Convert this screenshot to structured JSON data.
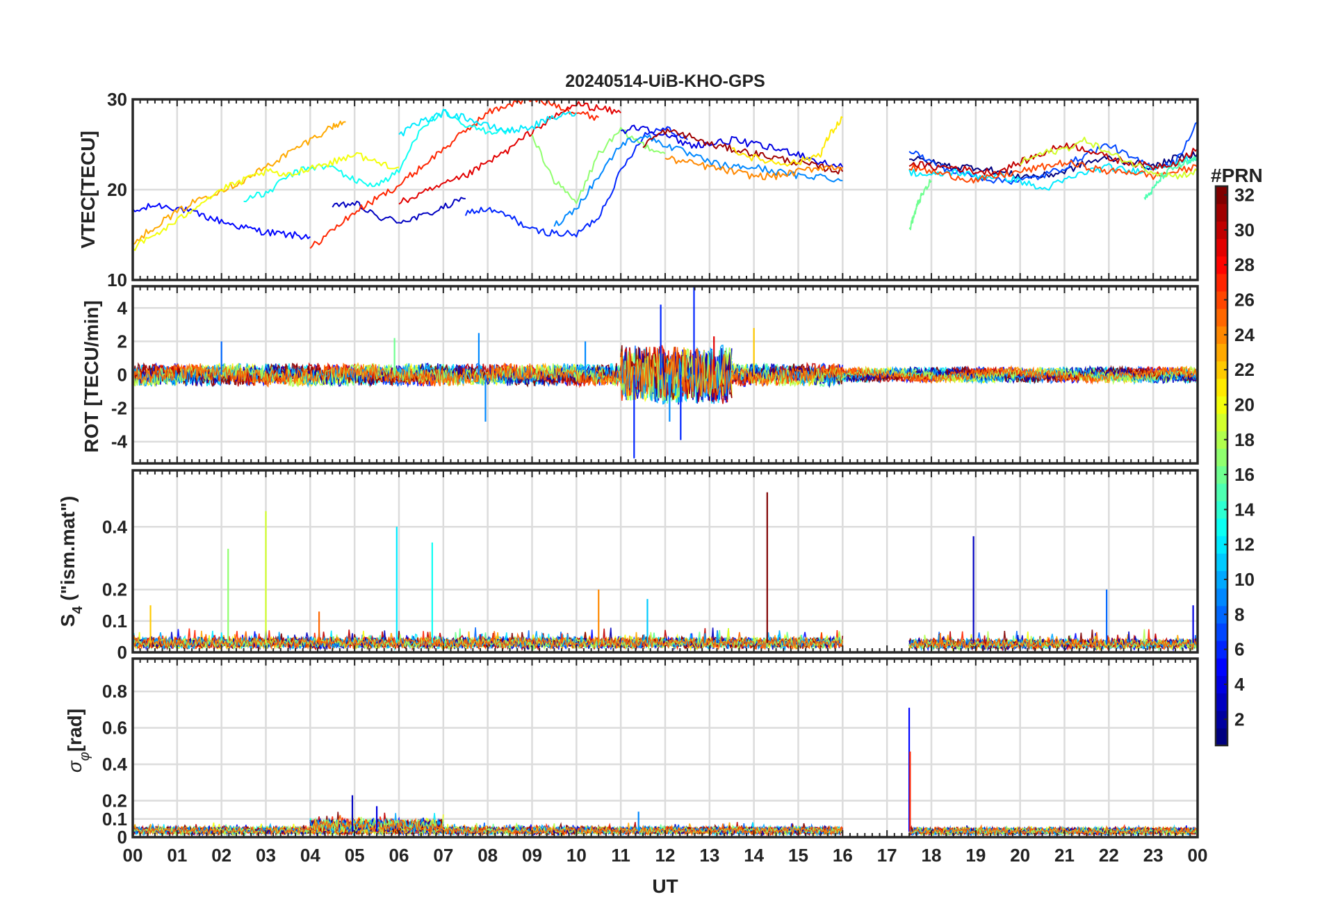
{
  "chart_data": [
    {
      "id": "vtec",
      "type": "line",
      "title": "20240514-UiB-KHO-GPS",
      "ylabel": "VTEC[TECU]",
      "ylim": [
        10,
        30
      ],
      "yticks": [
        10,
        20,
        30
      ],
      "ytick_labels": [
        "10",
        "20",
        "30"
      ],
      "grid": true,
      "series": [
        {
          "name": "PRN 5",
          "prn": 5,
          "x": [
            0.0,
            0.5,
            1.0,
            1.5,
            2.0,
            2.5,
            3.0,
            3.5,
            4.0
          ],
          "values": [
            17.5,
            18.3,
            18.0,
            17.2,
            16.5,
            15.8,
            15.3,
            15.0,
            14.8
          ]
        },
        {
          "name": "PRN 3",
          "prn": 3,
          "x": [
            4.5,
            5.0,
            5.5,
            6.0,
            6.5,
            7.0,
            7.5
          ],
          "values": [
            18.0,
            18.5,
            17.0,
            16.5,
            17.0,
            18.0,
            19.0
          ]
        },
        {
          "name": "PRN 6",
          "prn": 6,
          "x": [
            7.5,
            8.0,
            8.5,
            9.0,
            9.5,
            10.0,
            10.5,
            11.0,
            11.5,
            12.0,
            12.5
          ],
          "values": [
            17.5,
            17.8,
            17.0,
            15.5,
            15.2,
            15.0,
            17.0,
            22.0,
            26.0,
            27.0,
            25.5
          ]
        },
        {
          "name": "PRN 27",
          "prn": 27,
          "x": [
            4.0,
            4.5,
            5.0,
            5.5,
            6.0,
            6.5,
            7.0,
            7.5,
            8.0,
            8.5,
            9.0,
            9.5,
            10.0,
            10.5
          ],
          "values": [
            13.5,
            15.5,
            17.5,
            19.0,
            20.5,
            22.5,
            24.5,
            26.5,
            28.5,
            29.5,
            30.0,
            29.5,
            28.5,
            28.0
          ]
        },
        {
          "name": "PRN 23",
          "prn": 23,
          "x": [
            0.0,
            0.5,
            1.0,
            1.5,
            2.0,
            2.5,
            3.0,
            3.5,
            4.0,
            4.5,
            4.8
          ],
          "values": [
            14.0,
            16.0,
            17.5,
            19.0,
            20.0,
            21.0,
            22.5,
            24.0,
            25.5,
            27.0,
            27.5
          ]
        },
        {
          "name": "PRN 13",
          "prn": 13,
          "x": [
            2.5,
            3.0,
            3.5,
            4.0,
            4.5,
            5.0,
            5.5,
            6.0,
            6.5,
            7.0,
            7.5,
            8.0,
            8.5
          ],
          "values": [
            19.0,
            19.5,
            21.5,
            22.5,
            22.5,
            21.0,
            20.5,
            22.0,
            27.0,
            28.5,
            27.0,
            26.5,
            26.5
          ]
        },
        {
          "name": "PRN 29",
          "prn": 29,
          "x": [
            6.0,
            6.5,
            7.0,
            7.5,
            8.0,
            8.5,
            9.0,
            9.5,
            10.0,
            10.5,
            11.0
          ],
          "values": [
            18.5,
            19.5,
            20.5,
            21.5,
            23.0,
            24.5,
            26.5,
            28.0,
            29.5,
            29.0,
            28.5
          ]
        },
        {
          "name": "PRN 17",
          "prn": 17,
          "x": [
            9.0,
            9.5,
            10.0,
            10.5,
            11.0,
            11.5,
            12.0
          ],
          "values": [
            26.0,
            21.0,
            18.5,
            24.0,
            26.5,
            25.0,
            24.0
          ]
        },
        {
          "name": "PRN 20",
          "prn": 20,
          "x": [
            0.0,
            0.5,
            1.0,
            1.5,
            2.0,
            2.5,
            3.0,
            3.5,
            4.0,
            4.5,
            5.0,
            5.5,
            6.0
          ],
          "values": [
            13.5,
            15.0,
            16.5,
            18.5,
            20.0,
            21.0,
            22.0,
            21.5,
            22.5,
            23.0,
            24.0,
            23.0,
            22.5
          ]
        },
        {
          "name": "PRN 12",
          "prn": 12,
          "x": [
            6.0,
            6.5,
            7.0,
            7.5,
            8.0,
            8.5,
            9.0,
            9.5,
            10.0
          ],
          "values": [
            26.0,
            27.5,
            28.5,
            28.0,
            27.0,
            26.5,
            27.0,
            28.0,
            28.5
          ]
        },
        {
          "name": "PRN 9",
          "prn": 9,
          "x": [
            9.5,
            10.0,
            10.5,
            11.0,
            11.5,
            12.0,
            12.5,
            13.0,
            13.5,
            14.0,
            14.5,
            15.0,
            15.5,
            16.0
          ],
          "values": [
            16.0,
            18.0,
            21.5,
            25.0,
            26.0,
            25.0,
            24.0,
            23.0,
            22.5,
            22.5,
            22.0,
            21.5,
            21.5,
            21.0
          ]
        },
        {
          "name": "PRN 4",
          "prn": 4,
          "x": [
            11.0,
            11.5,
            12.0,
            12.5,
            13.0,
            13.5,
            14.0,
            14.5,
            15.0,
            15.5,
            16.0
          ],
          "values": [
            26.5,
            27.0,
            26.0,
            25.0,
            25.0,
            25.5,
            25.0,
            24.5,
            24.0,
            23.0,
            22.5
          ]
        },
        {
          "name": "PRN 31",
          "prn": 31,
          "x": [
            11.5,
            12.0,
            12.5,
            13.0,
            13.5,
            14.0,
            14.5,
            15.0,
            15.5,
            16.0
          ],
          "values": [
            25.0,
            26.5,
            26.0,
            25.0,
            24.5,
            24.0,
            23.5,
            23.0,
            22.5,
            22.0
          ]
        },
        {
          "name": "PRN 21",
          "prn": 21,
          "x": [
            13.5,
            14.0,
            14.5,
            15.0,
            15.5,
            15.7,
            16.0
          ],
          "values": [
            24.5,
            23.5,
            23.0,
            23.0,
            24.0,
            26.0,
            28.0
          ]
        },
        {
          "name": "PRN 24",
          "prn": 24,
          "x": [
            12.0,
            12.5,
            13.0,
            13.5,
            14.0,
            14.5,
            15.0,
            15.5,
            16.0
          ],
          "values": [
            23.5,
            23.0,
            22.5,
            22.0,
            21.5,
            21.5,
            22.0,
            22.5,
            22.5
          ]
        },
        {
          "name": "PRN 1",
          "prn": 1,
          "x": [
            17.5,
            18.0,
            18.5,
            19.0,
            19.5,
            20.0,
            20.5,
            21.0,
            21.5,
            22.0,
            22.5,
            23.0,
            23.5,
            24.0
          ],
          "values": [
            23.5,
            23.0,
            22.5,
            22.5,
            22.0,
            21.5,
            21.5,
            22.0,
            23.0,
            23.5,
            23.0,
            22.5,
            23.5,
            24.0
          ]
        },
        {
          "name": "PRN 7",
          "prn": 7,
          "x": [
            17.5,
            18.0,
            18.5,
            19.0,
            19.5,
            20.0,
            20.5,
            21.0,
            21.5,
            22.0,
            22.5,
            23.0,
            23.5,
            24.0
          ],
          "values": [
            24.5,
            23.0,
            22.0,
            21.5,
            21.0,
            21.0,
            21.5,
            22.5,
            24.0,
            25.0,
            23.5,
            22.5,
            23.0,
            27.5
          ]
        },
        {
          "name": "PRN 12b",
          "prn": 12,
          "x": [
            17.5,
            18.0,
            18.5,
            19.0,
            19.5,
            20.0,
            20.5,
            21.0,
            21.5,
            22.0,
            22.5,
            23.0,
            23.5,
            24.0
          ],
          "values": [
            22.0,
            21.5,
            22.0,
            21.5,
            21.5,
            21.0,
            20.0,
            21.0,
            22.0,
            22.5,
            22.0,
            22.5,
            23.0,
            23.5
          ]
        },
        {
          "name": "PRN 26",
          "prn": 26,
          "x": [
            17.5,
            18.0,
            18.5,
            19.0,
            19.5,
            20.0,
            20.5,
            21.0,
            21.5,
            22.0,
            22.5,
            23.0,
            23.5,
            24.0
          ],
          "values": [
            22.5,
            22.0,
            21.5,
            21.0,
            21.5,
            22.0,
            22.5,
            23.0,
            22.5,
            22.0,
            22.0,
            21.5,
            22.0,
            22.5
          ]
        },
        {
          "name": "PRN 30",
          "prn": 30,
          "x": [
            17.5,
            18.0,
            18.5,
            19.0,
            19.5,
            20.0,
            20.5,
            21.0,
            21.5,
            22.0,
            22.5,
            23.0,
            23.5,
            24.0
          ],
          "values": [
            23.0,
            22.5,
            22.5,
            22.0,
            22.0,
            23.0,
            24.0,
            25.0,
            24.5,
            23.5,
            23.0,
            22.5,
            23.0,
            24.5
          ]
        },
        {
          "name": "PRN 16",
          "prn": 16,
          "x": [
            17.5,
            17.6,
            17.7,
            17.8,
            18.0
          ],
          "values": [
            15.5,
            17.0,
            18.5,
            19.5,
            21.0
          ]
        },
        {
          "name": "PRN 19",
          "prn": 19,
          "x": [
            20.0,
            20.5,
            21.0,
            21.5,
            22.0,
            22.5,
            23.0,
            23.5,
            24.0
          ],
          "values": [
            23.0,
            24.0,
            24.5,
            25.5,
            24.0,
            23.0,
            22.0,
            21.5,
            22.0
          ]
        },
        {
          "name": "PRN 15",
          "prn": 15,
          "x": [
            22.8,
            23.0,
            23.2,
            23.5,
            23.8,
            24.0
          ],
          "values": [
            19.0,
            20.0,
            21.5,
            22.5,
            23.0,
            23.5
          ]
        }
      ]
    },
    {
      "id": "rot",
      "type": "line",
      "ylabel": "ROT [TECU/min]",
      "ylim": [
        -5.3,
        5.3
      ],
      "yticks": [
        -4,
        -2,
        0,
        2,
        4
      ],
      "ytick_labels": [
        "-4",
        "-2",
        "0",
        "2",
        "4"
      ],
      "grid": true,
      "noise_segments": [
        {
          "x_range": [
            0.0,
            16.0
          ],
          "amplitude": 0.5
        },
        {
          "x_range": [
            11.0,
            13.5
          ],
          "amplitude": 1.6
        },
        {
          "x_range": [
            16.0,
            17.5
          ],
          "amplitude": 0.25
        },
        {
          "x_range": [
            17.5,
            24.0
          ],
          "amplitude": 0.3
        }
      ],
      "spikes": [
        {
          "x": 2.0,
          "value": 2.0,
          "prn": 8
        },
        {
          "x": 5.9,
          "value": 2.2,
          "prn": 16
        },
        {
          "x": 7.8,
          "value": 2.5,
          "prn": 9
        },
        {
          "x": 7.95,
          "value": -2.8,
          "prn": 9
        },
        {
          "x": 10.2,
          "value": 2.0,
          "prn": 9
        },
        {
          "x": 11.3,
          "value": -5.0,
          "prn": 6
        },
        {
          "x": 11.9,
          "value": 4.2,
          "prn": 6
        },
        {
          "x": 12.65,
          "value": 5.3,
          "prn": 6
        },
        {
          "x": 12.35,
          "value": -3.9,
          "prn": 6
        },
        {
          "x": 12.1,
          "value": -2.8,
          "prn": 9
        },
        {
          "x": 14.0,
          "value": 2.8,
          "prn": 22
        },
        {
          "x": 13.1,
          "value": 2.3,
          "prn": 29
        }
      ]
    },
    {
      "id": "s4",
      "type": "line",
      "ylabel": "S4 (\"ism.mat\")",
      "ylabel_main": "S",
      "ylabel_sub": "4",
      "ylabel_rest": " (\"ism.mat\")",
      "ylim": [
        0,
        0.58
      ],
      "yticks": [
        0,
        0.1,
        0.2,
        0.4
      ],
      "ytick_labels": [
        "0",
        "0.1",
        "0.2",
        "0.4"
      ],
      "grid": true,
      "noise_segments": [
        {
          "x_range": [
            0.0,
            16.0
          ],
          "base": 0.03,
          "amplitude": 0.03
        },
        {
          "x_range": [
            17.5,
            24.0
          ],
          "base": 0.025,
          "amplitude": 0.03
        }
      ],
      "spikes": [
        {
          "x": 2.15,
          "value": 0.33,
          "prn": 17
        },
        {
          "x": 3.0,
          "value": 0.45,
          "prn": 19
        },
        {
          "x": 5.95,
          "value": 0.4,
          "prn": 12
        },
        {
          "x": 6.75,
          "value": 0.35,
          "prn": 13
        },
        {
          "x": 14.3,
          "value": 0.51,
          "prn": 32
        },
        {
          "x": 18.95,
          "value": 0.37,
          "prn": 3
        },
        {
          "x": 21.95,
          "value": 0.2,
          "prn": 8
        },
        {
          "x": 11.6,
          "value": 0.17,
          "prn": 11
        },
        {
          "x": 10.5,
          "value": 0.2,
          "prn": 24
        },
        {
          "x": 0.4,
          "value": 0.15,
          "prn": 22
        },
        {
          "x": 4.2,
          "value": 0.13,
          "prn": 25
        },
        {
          "x": 23.9,
          "value": 0.15,
          "prn": 4
        }
      ]
    },
    {
      "id": "sigma",
      "type": "line",
      "ylabel": "σφ[rad]",
      "ylabel_main": "σ",
      "ylabel_sub": "φ",
      "ylabel_rest": "[rad]",
      "ylim": [
        0,
        0.98
      ],
      "yticks": [
        0,
        0.1,
        0.2,
        0.4,
        0.6,
        0.8
      ],
      "ytick_labels": [
        "0",
        "0.1",
        "0.2",
        "0.4",
        "0.6",
        "0.8"
      ],
      "grid": true,
      "noise_segments": [
        {
          "x_range": [
            0.0,
            16.0
          ],
          "base": 0.04,
          "amplitude": 0.025
        },
        {
          "x_range": [
            4.0,
            7.0
          ],
          "base": 0.07,
          "amplitude": 0.04
        },
        {
          "x_range": [
            17.5,
            24.0
          ],
          "base": 0.04,
          "amplitude": 0.012
        }
      ],
      "spikes": [
        {
          "x": 4.95,
          "value": 0.23,
          "prn": 3
        },
        {
          "x": 5.5,
          "value": 0.17,
          "prn": 4
        },
        {
          "x": 11.4,
          "value": 0.14,
          "prn": 9
        },
        {
          "x": 17.5,
          "value": 0.71,
          "prn": 5
        },
        {
          "x": 17.52,
          "value": 0.47,
          "prn": 27
        }
      ]
    }
  ],
  "xaxis": {
    "xlabel": "UT",
    "xlim": [
      0,
      24
    ],
    "ticks": [
      0,
      1,
      2,
      3,
      4,
      5,
      6,
      7,
      8,
      9,
      10,
      11,
      12,
      13,
      14,
      15,
      16,
      17,
      18,
      19,
      20,
      21,
      22,
      23,
      24
    ],
    "tick_labels": [
      "00",
      "01",
      "02",
      "03",
      "04",
      "05",
      "06",
      "07",
      "08",
      "09",
      "10",
      "11",
      "12",
      "13",
      "14",
      "15",
      "16",
      "17",
      "18",
      "19",
      "20",
      "21",
      "22",
      "23",
      "00"
    ]
  },
  "colorbar": {
    "title": "#PRN",
    "range": [
      1,
      32
    ],
    "ticks": [
      2,
      4,
      6,
      8,
      10,
      12,
      14,
      16,
      18,
      20,
      22,
      24,
      26,
      28,
      30,
      32
    ],
    "tick_labels": [
      "2",
      "4",
      "6",
      "8",
      "10",
      "12",
      "14",
      "16",
      "18",
      "20",
      "22",
      "24",
      "26",
      "28",
      "30",
      "32"
    ],
    "colormap": "jet"
  },
  "colors": {
    "grid": "#dcdcdc",
    "axis": "#262626",
    "text": "#222222",
    "background": "#ffffff"
  }
}
